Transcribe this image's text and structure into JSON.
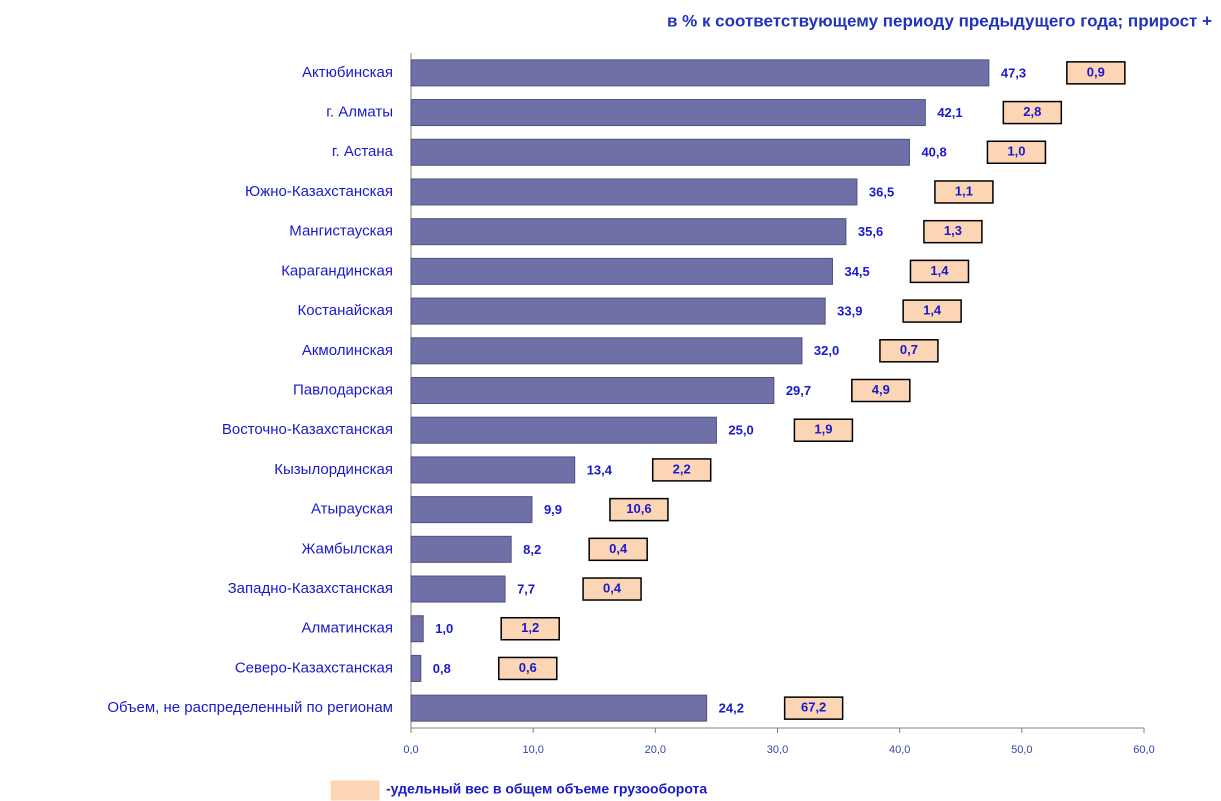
{
  "chart_data": {
    "type": "bar",
    "orientation": "horizontal",
    "title": "в % к соответствующему периоду предыдущего года; прирост +",
    "categories": [
      "Актюбинская",
      "г. Алматы",
      "г. Астана",
      "Южно-Казахстанская",
      "Мангистауская",
      "Карагандинская",
      "Костанайская",
      "Акмолинская",
      "Павлодарская",
      "Восточно-Казахстанская",
      "Кызылординская",
      "Атырауская",
      "Жамбылская",
      "Западно-Казахстанская",
      "Алматинская",
      "Северо-Казахстанская",
      "Объем, не распределенный по регионам"
    ],
    "values": [
      47.3,
      42.1,
      40.8,
      36.5,
      35.6,
      34.5,
      33.9,
      32.0,
      29.7,
      25.0,
      13.4,
      9.9,
      8.2,
      7.7,
      1.0,
      0.8,
      24.2
    ],
    "value_labels": [
      "47,3",
      "42,1",
      "40,8",
      "36,5",
      "35,6",
      "34,5",
      "33,9",
      "32,0",
      "29,7",
      "25,0",
      "13,4",
      "9,9",
      "8,2",
      "7,7",
      "1,0",
      "0,8",
      "24,2"
    ],
    "color": "#7070a8",
    "share": {
      "name": "-удельный вес в общем объеме грузооборота",
      "color": "#fcd5b4",
      "values": [
        0.9,
        2.8,
        1.0,
        1.1,
        1.3,
        1.4,
        1.4,
        0.7,
        4.9,
        1.9,
        2.2,
        10.6,
        0.4,
        0.4,
        1.2,
        0.6,
        67.2
      ],
      "value_labels": [
        "0,9",
        "2,8",
        "1,0",
        "1,1",
        "1,3",
        "1,4",
        "1,4",
        "0,7",
        "4,9",
        "1,9",
        "2,2",
        "10,6",
        "0,4",
        "0,4",
        "1,2",
        "0,6",
        "67,2"
      ]
    },
    "xlim": [
      0,
      60
    ],
    "xticks": [
      {
        "value": 0,
        "label": "0,0"
      },
      {
        "value": 10,
        "label": "10,0"
      },
      {
        "value": 20,
        "label": "20,0"
      },
      {
        "value": 30,
        "label": "30,0"
      },
      {
        "value": 40,
        "label": "40,0"
      },
      {
        "value": 50,
        "label": "50,0"
      },
      {
        "value": 60,
        "label": "60,0"
      }
    ],
    "grid": false
  }
}
